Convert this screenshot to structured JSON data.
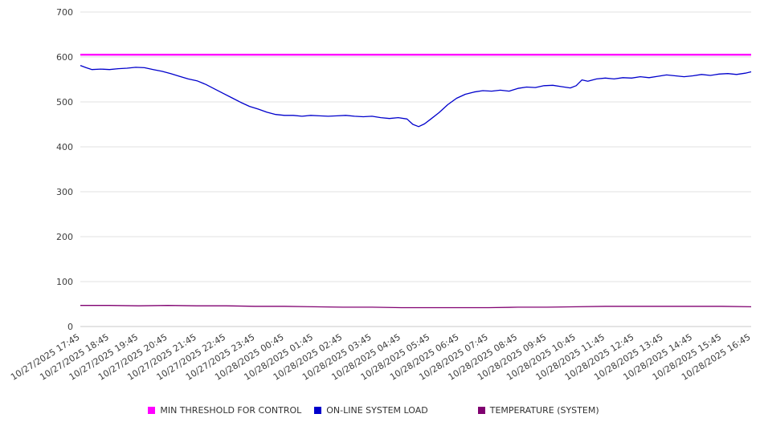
{
  "chart_data": {
    "type": "line",
    "title": "",
    "xlabel": "",
    "ylabel": "",
    "ylim": [
      0,
      700
    ],
    "yticks": [
      0,
      100,
      200,
      300,
      400,
      500,
      600,
      700
    ],
    "x_range_hours": [
      0,
      23
    ],
    "grid": true,
    "legend_position": "bottom",
    "categories": [
      "10/27/2025 17:45",
      "10/27/2025 18:45",
      "10/27/2025 19:45",
      "10/27/2025 20:45",
      "10/27/2025 21:45",
      "10/27/2025 22:45",
      "10/27/2025 23:45",
      "10/28/2025 00:45",
      "10/28/2025 01:45",
      "10/28/2025 02:45",
      "10/28/2025 03:45",
      "10/28/2025 04:45",
      "10/28/2025 05:45",
      "10/28/2025 06:45",
      "10/28/2025 07:45",
      "10/28/2025 08:45",
      "10/28/2025 09:45",
      "10/28/2025 10:45",
      "10/28/2025 11:45",
      "10/28/2025 12:45",
      "10/28/2025 13:45",
      "10/28/2025 14:45",
      "10/28/2025 15:45",
      "10/28/2025 16:45"
    ],
    "series": [
      {
        "name": "MIN THRESHOLD FOR CONTROL",
        "color": "#ff00ff",
        "stroke_width": 2.4,
        "points": [
          [
            0,
            605
          ],
          [
            23,
            605
          ]
        ]
      },
      {
        "name": "ON-LINE SYSTEM LOAD",
        "color": "#0000cc",
        "stroke_width": 1.3,
        "points": [
          [
            0,
            581
          ],
          [
            0.2,
            576
          ],
          [
            0.4,
            572
          ],
          [
            0.7,
            573
          ],
          [
            1,
            572
          ],
          [
            1.3,
            574
          ],
          [
            1.6,
            575
          ],
          [
            1.9,
            577
          ],
          [
            2.2,
            576
          ],
          [
            2.5,
            572
          ],
          [
            2.8,
            568
          ],
          [
            3.1,
            563
          ],
          [
            3.4,
            557
          ],
          [
            3.7,
            551
          ],
          [
            4,
            547
          ],
          [
            4.3,
            539
          ],
          [
            4.6,
            529
          ],
          [
            4.9,
            519
          ],
          [
            5.2,
            509
          ],
          [
            5.5,
            499
          ],
          [
            5.8,
            490
          ],
          [
            6.1,
            484
          ],
          [
            6.4,
            477
          ],
          [
            6.7,
            472
          ],
          [
            7,
            470
          ],
          [
            7.3,
            470
          ],
          [
            7.6,
            468
          ],
          [
            7.9,
            470
          ],
          [
            8.2,
            469
          ],
          [
            8.5,
            468
          ],
          [
            8.8,
            469
          ],
          [
            9.1,
            470
          ],
          [
            9.4,
            468
          ],
          [
            9.7,
            467
          ],
          [
            10,
            468
          ],
          [
            10.3,
            465
          ],
          [
            10.6,
            463
          ],
          [
            10.9,
            465
          ],
          [
            11.2,
            462
          ],
          [
            11.4,
            450
          ],
          [
            11.6,
            445
          ],
          [
            11.8,
            451
          ],
          [
            12,
            461
          ],
          [
            12.3,
            476
          ],
          [
            12.6,
            494
          ],
          [
            12.9,
            508
          ],
          [
            13.2,
            517
          ],
          [
            13.5,
            522
          ],
          [
            13.8,
            525
          ],
          [
            14.1,
            524
          ],
          [
            14.4,
            526
          ],
          [
            14.7,
            524
          ],
          [
            15,
            530
          ],
          [
            15.3,
            533
          ],
          [
            15.6,
            532
          ],
          [
            15.9,
            536
          ],
          [
            16.2,
            537
          ],
          [
            16.5,
            534
          ],
          [
            16.8,
            531
          ],
          [
            17,
            536
          ],
          [
            17.2,
            549
          ],
          [
            17.4,
            546
          ],
          [
            17.7,
            551
          ],
          [
            18,
            553
          ],
          [
            18.3,
            551
          ],
          [
            18.6,
            554
          ],
          [
            18.9,
            553
          ],
          [
            19.2,
            556
          ],
          [
            19.5,
            554
          ],
          [
            19.8,
            557
          ],
          [
            20.1,
            560
          ],
          [
            20.4,
            558
          ],
          [
            20.7,
            556
          ],
          [
            21,
            558
          ],
          [
            21.3,
            561
          ],
          [
            21.6,
            559
          ],
          [
            21.9,
            562
          ],
          [
            22.2,
            563
          ],
          [
            22.5,
            561
          ],
          [
            22.8,
            564
          ],
          [
            23,
            567
          ]
        ]
      },
      {
        "name": "TEMPERATURE (SYSTEM)",
        "color": "#800070",
        "stroke_width": 1.3,
        "points": [
          [
            0,
            47
          ],
          [
            1,
            47
          ],
          [
            2,
            46
          ],
          [
            3,
            47
          ],
          [
            4,
            46
          ],
          [
            5,
            46
          ],
          [
            6,
            45
          ],
          [
            7,
            45
          ],
          [
            8,
            44
          ],
          [
            9,
            43
          ],
          [
            10,
            43
          ],
          [
            11,
            42
          ],
          [
            12,
            42
          ],
          [
            13,
            42
          ],
          [
            14,
            42
          ],
          [
            15,
            43
          ],
          [
            16,
            43
          ],
          [
            17,
            44
          ],
          [
            18,
            45
          ],
          [
            19,
            45
          ],
          [
            20,
            45
          ],
          [
            21,
            45
          ],
          [
            22,
            45
          ],
          [
            23,
            44
          ]
        ]
      }
    ]
  }
}
